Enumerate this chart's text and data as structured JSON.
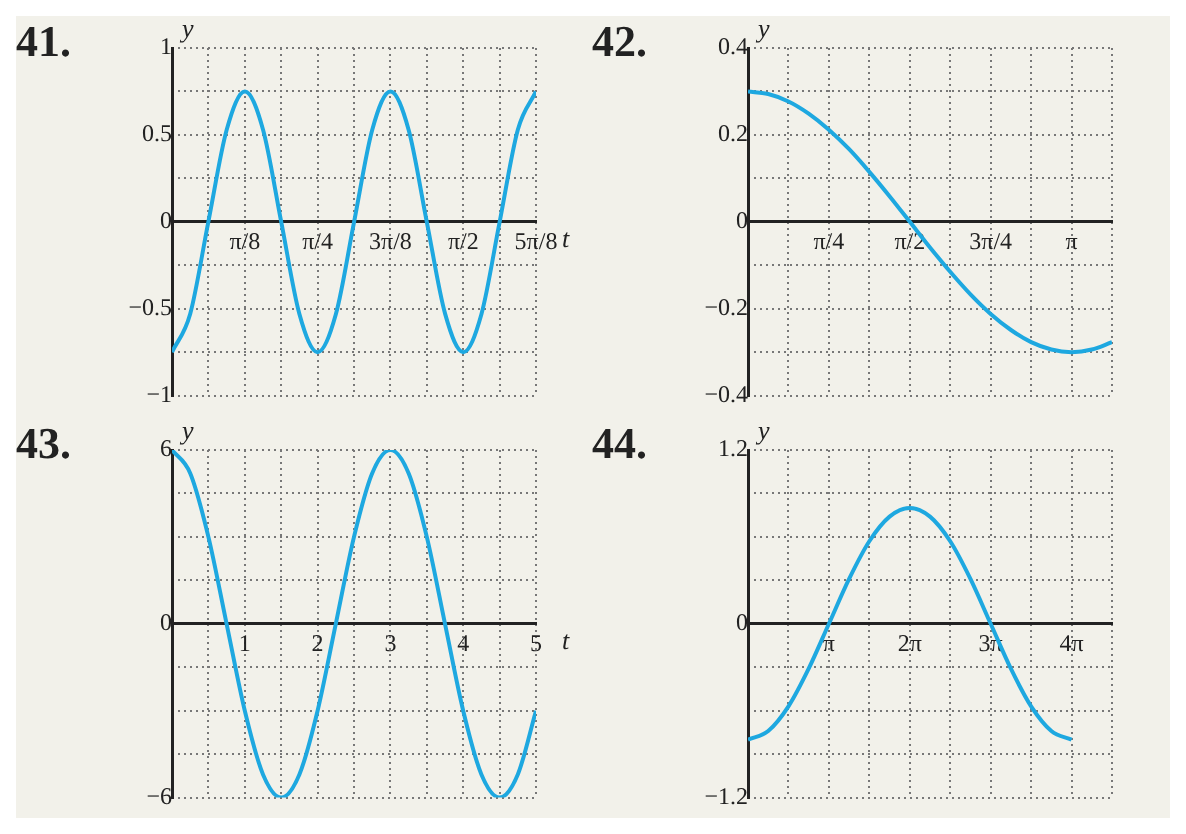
{
  "chart_data": [
    {
      "type": "line",
      "title": "41.",
      "xlabel": "t",
      "ylabel": "y",
      "color": "#1ea8e0",
      "grid": true,
      "x": [
        0,
        0.098,
        0.196,
        0.295,
        0.393,
        0.491,
        0.589,
        0.687,
        0.785,
        0.884,
        0.982,
        1.08,
        1.178,
        1.276,
        1.374,
        1.473,
        1.571,
        1.669,
        1.767,
        1.865,
        1.963
      ],
      "values": [
        -0.75,
        -0.53,
        0,
        0.53,
        0.75,
        0.53,
        0,
        -0.53,
        -0.75,
        -0.53,
        0,
        0.53,
        0.75,
        0.53,
        0,
        -0.53,
        -0.75,
        -0.53,
        0,
        0.53,
        0.75
      ],
      "xlim": [
        0,
        1.963
      ],
      "ylim": [
        -1,
        1
      ],
      "xticks": [
        {
          "value": 0,
          "label": null
        },
        {
          "value": 0.196,
          "label": null
        },
        {
          "value": 0.393,
          "label": "π/8"
        },
        {
          "value": 0.589,
          "label": null
        },
        {
          "value": 0.785,
          "label": "π/4"
        },
        {
          "value": 0.982,
          "label": null
        },
        {
          "value": 1.178,
          "label": "3π/8"
        },
        {
          "value": 1.374,
          "label": null
        },
        {
          "value": 1.571,
          "label": "π/2"
        },
        {
          "value": 1.767,
          "label": null
        },
        {
          "value": 1.963,
          "label": "5π/8"
        }
      ],
      "yticks": [
        {
          "value": -1,
          "label": "−1"
        },
        {
          "value": -0.75,
          "label": null
        },
        {
          "value": -0.5,
          "label": "−0.5"
        },
        {
          "value": -0.25,
          "label": null
        },
        0,
        {
          "value": 0.25,
          "label": null
        },
        0.5,
        {
          "value": 0.75,
          "label": null
        },
        1
      ]
    },
    {
      "type": "line",
      "title": "42.",
      "ylabel": "y",
      "color": "#1ea8e0",
      "grid": true,
      "x": [
        0,
        0.196,
        0.393,
        0.589,
        0.785,
        0.982,
        1.178,
        1.374,
        1.571,
        1.767,
        1.963,
        2.16,
        2.356,
        2.553,
        2.749,
        2.945,
        3.142,
        3.338,
        3.534
      ],
      "values": [
        0.3,
        0.294,
        0.277,
        0.249,
        0.212,
        0.167,
        0.115,
        0.059,
        0,
        -0.059,
        -0.115,
        -0.167,
        -0.212,
        -0.249,
        -0.277,
        -0.294,
        -0.3,
        -0.294,
        -0.277
      ],
      "xlim": [
        0,
        3.534
      ],
      "ylim": [
        -0.4,
        0.4
      ],
      "xticks": [
        {
          "value": 0,
          "label": null
        },
        {
          "value": 0.393,
          "label": null
        },
        {
          "value": 0.785,
          "label": "π/4"
        },
        {
          "value": 1.178,
          "label": null
        },
        {
          "value": 1.571,
          "label": "π/2"
        },
        {
          "value": 1.963,
          "label": null
        },
        {
          "value": 2.356,
          "label": "3π/4"
        },
        {
          "value": 2.749,
          "label": null
        },
        {
          "value": 3.142,
          "label": "π"
        },
        {
          "value": 3.534,
          "label": null
        }
      ],
      "yticks": [
        {
          "value": -0.4,
          "label": "−0.4"
        },
        {
          "value": -0.3,
          "label": null
        },
        {
          "value": -0.2,
          "label": "−0.2"
        },
        {
          "value": -0.1,
          "label": null
        },
        0,
        {
          "value": 0.1,
          "label": null
        },
        0.2,
        {
          "value": 0.3,
          "label": null
        },
        0.4
      ]
    },
    {
      "type": "line",
      "title": "43.",
      "xlabel": "t",
      "ylabel": "y",
      "color": "#1ea8e0",
      "grid": true,
      "x": [
        0,
        0.25,
        0.5,
        0.75,
        1,
        1.25,
        1.5,
        1.75,
        2,
        2.25,
        2.5,
        2.75,
        3,
        3.25,
        3.5,
        3.75,
        4,
        4.25,
        4.5,
        4.75,
        5
      ],
      "values": [
        6,
        5.2,
        3,
        0,
        -3,
        -5.2,
        -6,
        -5.2,
        -3,
        0,
        3,
        5.2,
        6,
        5.2,
        3,
        0,
        -3,
        -5.2,
        -6,
        -5.2,
        -3
      ],
      "xlim": [
        0,
        5
      ],
      "ylim": [
        -6,
        6
      ],
      "xticks": [
        {
          "value": 0,
          "label": null
        },
        {
          "value": 0.5,
          "label": null
        },
        1,
        {
          "value": 1.5,
          "label": null
        },
        2,
        {
          "value": 2.5,
          "label": null
        },
        3,
        {
          "value": 3.5,
          "label": null
        },
        4,
        {
          "value": 4.5,
          "label": null
        },
        5
      ],
      "yticks": [
        {
          "value": -6,
          "label": "−6"
        },
        {
          "value": -4.5,
          "label": null
        },
        {
          "value": -3,
          "label": null
        },
        {
          "value": -1.5,
          "label": null
        },
        0,
        {
          "value": 1.5,
          "label": null
        },
        {
          "value": 3,
          "label": null
        },
        {
          "value": 4.5,
          "label": null
        },
        6
      ]
    },
    {
      "type": "line",
      "title": "44.",
      "ylabel": "y",
      "color": "#1ea8e0",
      "grid": true,
      "x": [
        0,
        0.785,
        1.571,
        2.356,
        3.142,
        3.927,
        4.712,
        5.498,
        6.283,
        7.069,
        7.854,
        8.639,
        9.425,
        10.21,
        10.996,
        11.781,
        12.566
      ],
      "values": [
        -0.8,
        -0.74,
        -0.57,
        -0.31,
        0,
        0.31,
        0.57,
        0.74,
        0.8,
        0.74,
        0.57,
        0.31,
        0,
        -0.31,
        -0.57,
        -0.74,
        -0.8
      ],
      "xlim": [
        0,
        14.137
      ],
      "ylim": [
        -1.2,
        1.2
      ],
      "xticks": [
        {
          "value": 0,
          "label": null
        },
        {
          "value": 1.571,
          "label": null
        },
        {
          "value": 3.142,
          "label": "π"
        },
        {
          "value": 4.712,
          "label": null
        },
        {
          "value": 6.283,
          "label": "2π"
        },
        {
          "value": 7.854,
          "label": null
        },
        {
          "value": 9.425,
          "label": "3π"
        },
        {
          "value": 10.996,
          "label": null
        },
        {
          "value": 12.566,
          "label": "4π"
        },
        {
          "value": 14.137,
          "label": null
        }
      ],
      "yticks": [
        {
          "value": -1.2,
          "label": "−1.2"
        },
        {
          "value": -0.9,
          "label": null
        },
        {
          "value": -0.6,
          "label": null
        },
        {
          "value": -0.3,
          "label": null
        },
        0,
        {
          "value": 0.3,
          "label": null
        },
        {
          "value": 0.6,
          "label": null
        },
        {
          "value": 0.9,
          "label": null
        },
        1.2
      ]
    }
  ]
}
